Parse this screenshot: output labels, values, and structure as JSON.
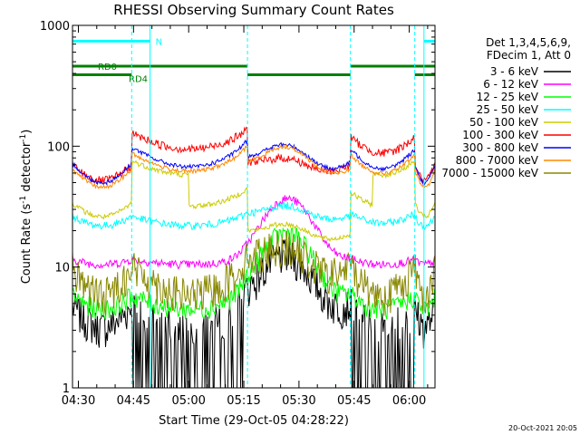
{
  "chart_data": {
    "type": "line",
    "title": "RHESSI Observing Summary Count Rates",
    "xlabel": "Start Time (29-Oct-05 04:28:22)",
    "ylabel_pre": "Count Rate (s",
    "ylabel_exp1": "-1",
    "ylabel_mid": " detector",
    "ylabel_exp2": "-1",
    "ylabel_post": ")",
    "ylabel": "Count Rate (s^-1 detector^-1)",
    "yscale": "log",
    "ylim": [
      1,
      1000
    ],
    "xlim_min": [
      268.4,
      367
    ],
    "x_unit": "minutes after 00:00 UT, 29-Oct-05",
    "yticks": [
      {
        "value": 1,
        "label": "1"
      },
      {
        "value": 10,
        "label": "10"
      },
      {
        "value": 100,
        "label": "100"
      },
      {
        "value": 1000,
        "label": "1000"
      }
    ],
    "xticks": [
      {
        "value": 270,
        "label": "04:30"
      },
      {
        "value": 285,
        "label": "04:45"
      },
      {
        "value": 300,
        "label": "05:00"
      },
      {
        "value": 315,
        "label": "05:15"
      },
      {
        "value": 330,
        "label": "05:30"
      },
      {
        "value": 345,
        "label": "05:45"
      },
      {
        "value": 360,
        "label": "06:00"
      }
    ],
    "grid": false,
    "legend_position": "right",
    "legend_header": [
      "Det 1,3,4,5,6,9,",
      "FDecim 1, Att 0"
    ],
    "series": [
      {
        "name": "3 - 6 keV",
        "color": "#000000"
      },
      {
        "name": "6 - 12 keV",
        "color": "#ff00ff"
      },
      {
        "name": "12 - 25 keV",
        "color": "#00ff00"
      },
      {
        "name": "25 - 50 keV",
        "color": "#00ffff"
      },
      {
        "name": "50 - 100 keV",
        "color": "#cccc00"
      },
      {
        "name": "100 - 300 keV",
        "color": "#ff0000"
      },
      {
        "name": "300 - 800 keV",
        "color": "#0000ff"
      },
      {
        "name": "800 - 7000 keV",
        "color": "#ff8800"
      },
      {
        "name": "7000 - 15000 keV",
        "color": "#888800"
      }
    ],
    "night_label": "N",
    "night_intervals": [
      [
        268.4,
        289.5
      ],
      [
        364.0,
        367.0
      ]
    ],
    "night_boundaries": [
      289.5,
      364.0
    ],
    "saa_boundaries": [
      284.5,
      316.0,
      344.0,
      361.5
    ],
    "rd0_label": "RD0",
    "rd0_intervals": [
      [
        268.4,
        316.0
      ],
      [
        344.0,
        367.0
      ]
    ],
    "rd4_label": "RD4",
    "rd4_intervals": [
      [
        268.4,
        284.5
      ],
      [
        316.0,
        344.0
      ],
      [
        361.5,
        367.0
      ]
    ],
    "footer_date": "20-Oct-2021 20:05"
  }
}
